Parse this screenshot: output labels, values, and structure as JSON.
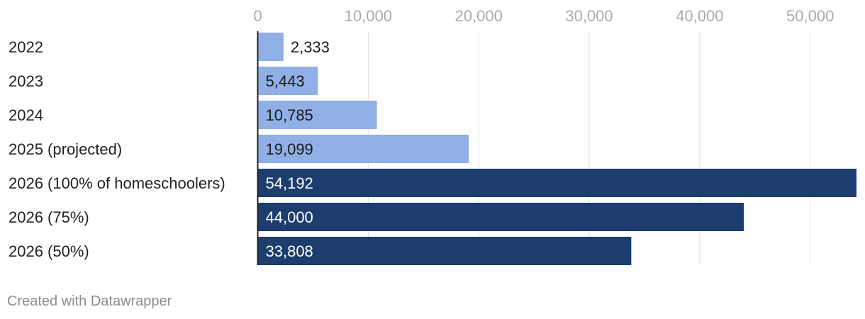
{
  "chart_data": {
    "type": "bar",
    "orientation": "horizontal",
    "title": "",
    "xlabel": "",
    "ylabel": "",
    "categories": [
      "2022",
      "2023",
      "2024",
      "2025 (projected)",
      "2026 (100% of homeschoolers)",
      "2026 (75%)",
      "2026 (50%)"
    ],
    "values": [
      2333,
      5443,
      10785,
      19099,
      54192,
      44000,
      33808
    ],
    "value_labels": [
      "2,333",
      "5,443",
      "10,785",
      "19,099",
      "54,192",
      "44,000",
      "33,808"
    ],
    "bar_colors": [
      "#8fafe5",
      "#8fafe5",
      "#8fafe5",
      "#8fafe5",
      "#1c3d6e",
      "#1c3d6e",
      "#1c3d6e"
    ],
    "xlim": [
      0,
      54192
    ],
    "x_ticks": [
      0,
      10000,
      20000,
      30000,
      40000,
      50000
    ],
    "x_tick_labels": [
      "0",
      "10,000",
      "20,000",
      "30,000",
      "40,000",
      "50,000"
    ],
    "grid": true,
    "axis_position": "top"
  },
  "footer": {
    "credit": "Created with Datawrapper"
  },
  "colors": {
    "light_bar": "#8fafe5",
    "dark_bar": "#1c3d6e",
    "grid": "#e2e2e2",
    "tick_text": "#aaaaaa",
    "footer_text": "#8c8c8c"
  }
}
